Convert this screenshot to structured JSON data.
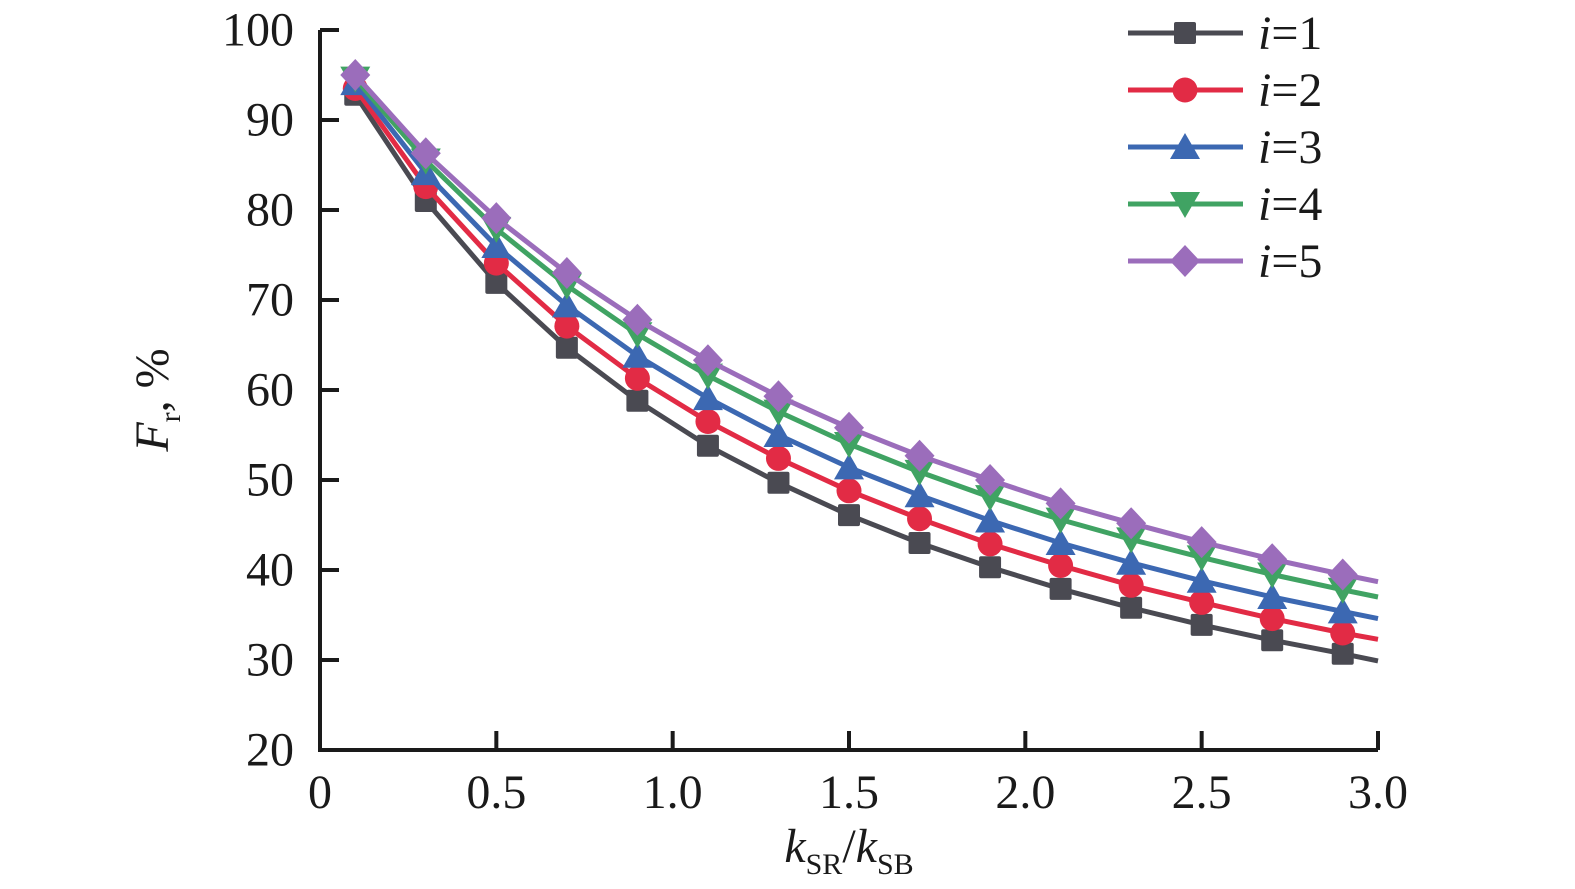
{
  "chart_data": {
    "type": "line",
    "x": [
      0.1,
      0.3,
      0.5,
      0.7,
      0.9,
      1.1,
      1.3,
      1.5,
      1.7,
      1.9,
      2.1,
      2.3,
      2.5,
      2.7,
      2.9,
      3.0
    ],
    "marker_x_max": 2.9,
    "series": [
      {
        "name": "i=1",
        "label_parts": [
          {
            "t": "i",
            "s": "i"
          },
          {
            "t": "=1",
            "s": "n"
          }
        ],
        "color": "#4a4a52",
        "marker": "square",
        "values": [
          92.8,
          81.0,
          71.9,
          64.7,
          58.8,
          53.8,
          49.7,
          46.1,
          43.0,
          40.3,
          37.9,
          35.8,
          33.9,
          32.2,
          30.7,
          29.9
        ]
      },
      {
        "name": "i=2",
        "label_parts": [
          {
            "t": "i",
            "s": "i"
          },
          {
            "t": "=2",
            "s": "n"
          }
        ],
        "color": "#e22b45",
        "marker": "circle",
        "values": [
          93.5,
          82.6,
          74.1,
          67.1,
          61.3,
          56.5,
          52.4,
          48.8,
          45.7,
          42.9,
          40.5,
          38.3,
          36.4,
          34.6,
          33.0,
          32.3
        ]
      },
      {
        "name": "i=3",
        "label_parts": [
          {
            "t": "i",
            "s": "i"
          },
          {
            "t": "=3",
            "s": "n"
          }
        ],
        "color": "#3c68b2",
        "marker": "triangle-up",
        "values": [
          94.1,
          84.1,
          76.0,
          69.4,
          63.8,
          59.1,
          55.0,
          51.4,
          48.3,
          45.5,
          43.0,
          40.8,
          38.8,
          37.0,
          35.4,
          34.6
        ]
      },
      {
        "name": "i=4",
        "label_parts": [
          {
            "t": "i",
            "s": "i"
          },
          {
            "t": "=4",
            "s": "n"
          }
        ],
        "color": "#40a363",
        "marker": "triangle-down",
        "values": [
          94.6,
          85.5,
          77.9,
          71.6,
          66.2,
          61.6,
          57.6,
          54.0,
          50.9,
          48.1,
          45.6,
          43.4,
          41.4,
          39.5,
          37.8,
          37.0
        ]
      },
      {
        "name": "i=5",
        "label_parts": [
          {
            "t": "i",
            "s": "i"
          },
          {
            "t": "=5",
            "s": "n"
          }
        ],
        "color": "#9b6dbb",
        "marker": "diamond",
        "values": [
          95.0,
          86.3,
          79.1,
          73.0,
          67.8,
          63.3,
          59.3,
          55.8,
          52.7,
          50.0,
          47.4,
          45.2,
          43.1,
          41.2,
          39.5,
          38.7
        ]
      }
    ],
    "x_axis": {
      "label_parts": [
        {
          "t": "k",
          "s": "i"
        },
        {
          "t": "SR",
          "s": "sub"
        },
        {
          "t": "/",
          "s": "n"
        },
        {
          "t": "k",
          "s": "i"
        },
        {
          "t": "SB",
          "s": "sub"
        }
      ],
      "ticks": [
        {
          "v": 0,
          "label": "0"
        },
        {
          "v": 0.5,
          "label": "0.5"
        },
        {
          "v": 1,
          "label": "1.0"
        },
        {
          "v": 1.5,
          "label": "1.5"
        },
        {
          "v": 2,
          "label": "2.0"
        },
        {
          "v": 2.5,
          "label": "2.5"
        },
        {
          "v": 3,
          "label": "3.0"
        }
      ],
      "range": [
        0,
        3
      ]
    },
    "y_axis": {
      "label_parts": [
        {
          "t": "F",
          "s": "i"
        },
        {
          "t": "r",
          "s": "sub"
        },
        {
          "t": ", %",
          "s": "n"
        }
      ],
      "ticks": [
        {
          "v": 20,
          "label": "20"
        },
        {
          "v": 30,
          "label": "30"
        },
        {
          "v": 40,
          "label": "40"
        },
        {
          "v": 50,
          "label": "50"
        },
        {
          "v": 60,
          "label": "60"
        },
        {
          "v": 70,
          "label": "70"
        },
        {
          "v": 80,
          "label": "80"
        },
        {
          "v": 90,
          "label": "90"
        },
        {
          "v": 100,
          "label": "100"
        }
      ],
      "range": [
        20,
        100
      ]
    },
    "legend_position": "top-right",
    "grid": false,
    "axis_color": "#1a1a1a",
    "background": "#ffffff"
  }
}
